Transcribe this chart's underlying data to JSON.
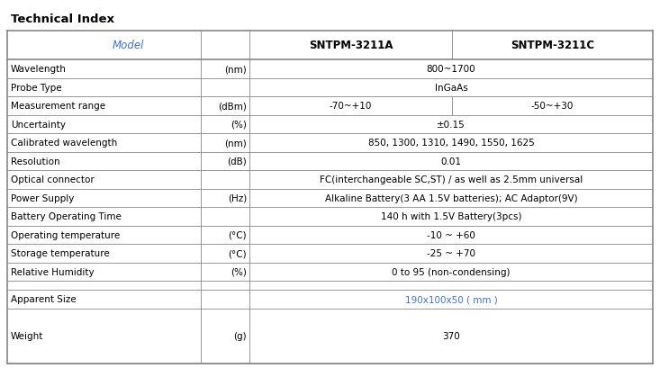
{
  "title": "Technical Index",
  "title_fontsize": 9.5,
  "header_color": "#4472C4",
  "fig_bg": "#FFFFFF",
  "border_color": "#888888",
  "header_row": [
    "Model",
    "",
    "SNTPM-3211A",
    "SNTPM-3211C"
  ],
  "rows": [
    [
      "Wavelength",
      "(nm)",
      "800~1700",
      ""
    ],
    [
      "Probe Type",
      "",
      "InGaAs",
      ""
    ],
    [
      "Measurement range",
      "(dBm)",
      "-70~+10",
      "-50~+30"
    ],
    [
      "Uncertainty",
      "(%)",
      "±0.15",
      ""
    ],
    [
      "Calibrated wavelength",
      "(nm)",
      "850, 1300, 1310, 1490, 1550, 1625",
      ""
    ],
    [
      "Resolution",
      "(dB)",
      "0.01",
      ""
    ],
    [
      "Optical connector",
      "",
      "FC(interchangeable SC,ST) / as well as 2.5mm universal",
      ""
    ],
    [
      "Power Supply",
      "(Hz)",
      "Alkaline Battery(3 AA 1.5V batteries); AC Adaptor(9V)",
      ""
    ],
    [
      "Battery Operating Time",
      "",
      "140 h with 1.5V Battery(3pcs)",
      ""
    ],
    [
      "Operating temperature",
      "(°C)",
      "-10 ~ +60",
      ""
    ],
    [
      "Storage temperature",
      "(°C)",
      "-25 ~ +70",
      ""
    ],
    [
      "Relative Humidity",
      "(%)",
      "0 to 95 (non-condensing)",
      ""
    ],
    [
      "",
      "",
      "",
      ""
    ],
    [
      "Apparent Size",
      "",
      "190x100x50 ( mm )",
      ""
    ],
    [
      "Weight",
      "(g)",
      "370",
      ""
    ]
  ],
  "apparent_size_color": "#4472C4",
  "font_size_data": 7.5,
  "font_size_header": 8.5
}
